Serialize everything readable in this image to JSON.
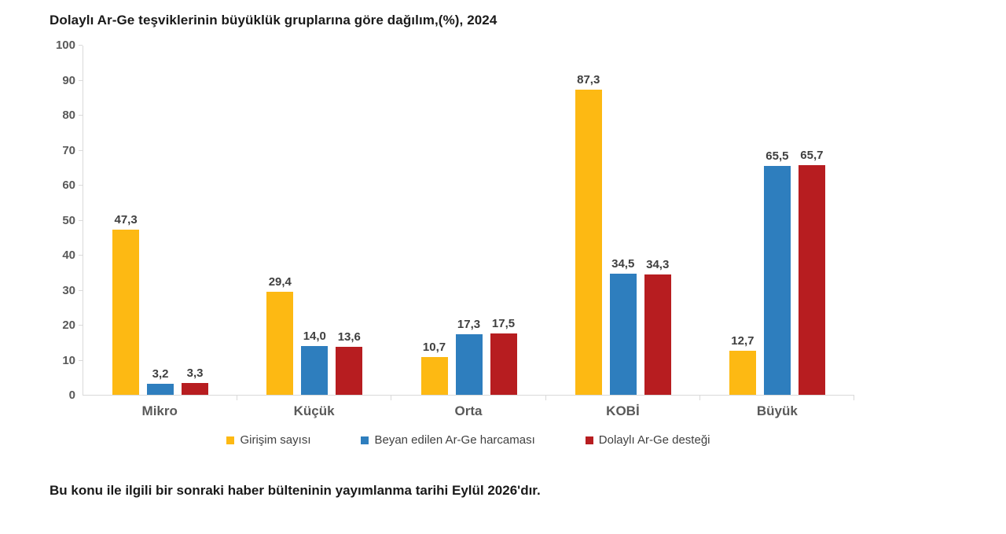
{
  "title": "Dolaylı Ar-Ge teşviklerinin büyüklük gruplarına göre dağılım,(%), 2024",
  "footer_note": "Bu konu ile ilgili bir sonraki haber bülteninin yayımlanma tarihi Eylül 2026'dır.",
  "chart_data": {
    "type": "bar",
    "title": "Dolaylı Ar-Ge teşviklerinin büyüklük gruplarına göre dağılım,(%), 2024",
    "categories": [
      "Mikro",
      "Küçük",
      "Orta",
      "KOBİ",
      "Büyük"
    ],
    "series": [
      {
        "name": "Girişim sayısı",
        "color": "#FDB913",
        "values": [
          47.3,
          29.4,
          10.7,
          87.3,
          12.7
        ]
      },
      {
        "name": "Beyan edilen Ar-Ge harcaması",
        "color": "#2E7EBE",
        "values": [
          3.2,
          14.0,
          17.3,
          34.5,
          65.5
        ]
      },
      {
        "name": "Dolaylı Ar-Ge desteği",
        "color": "#B71D20",
        "values": [
          3.3,
          13.6,
          17.5,
          34.3,
          65.7
        ]
      }
    ],
    "xlabel": "",
    "ylabel": "",
    "ylim": [
      0,
      100
    ],
    "ytick_step": 10,
    "grid": false,
    "legend_position": "bottom",
    "value_labels": true,
    "decimal_separator": ",",
    "axis_color": "#d9d9d9",
    "text_color": "#595959"
  }
}
